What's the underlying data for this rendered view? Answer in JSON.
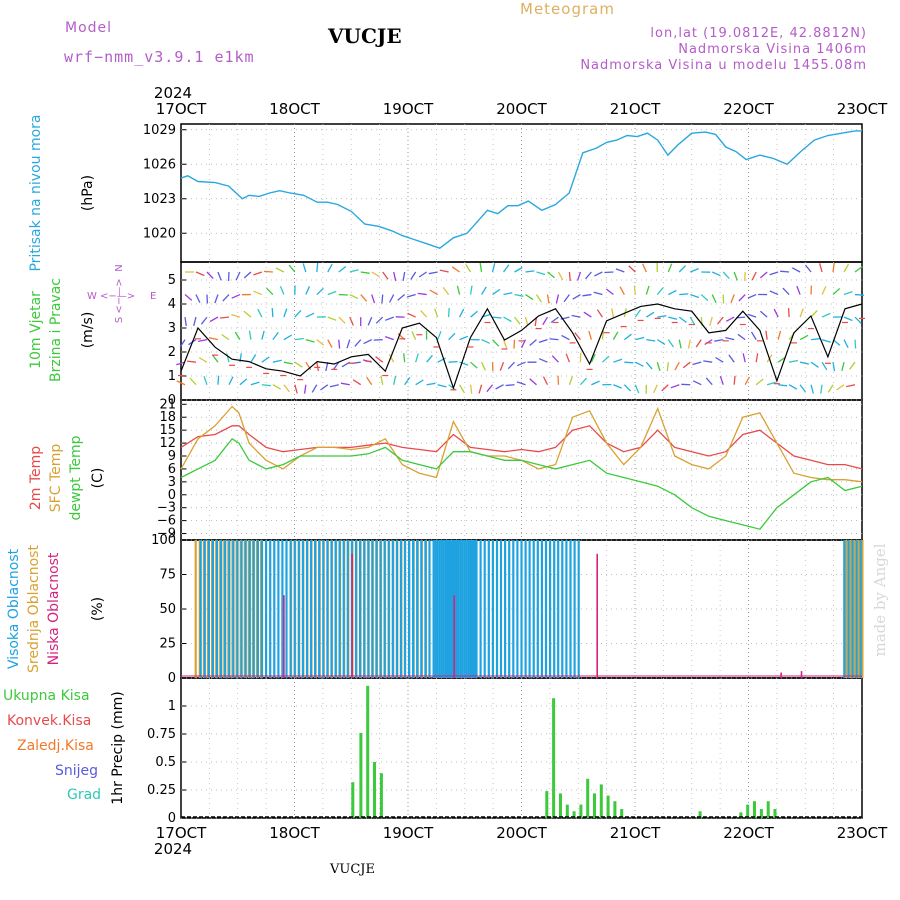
{
  "header": {
    "model_label": "Model",
    "model_name": "wrf−nmm_v3.9.1  e1km",
    "station": "VUCJE",
    "subtitle": "Meteogram",
    "coords": "lon,lat (19.0812E, 42.8812N)",
    "elevation": "Nadmorska Visina 1406m",
    "model_elevation": "Nadmorska Visina u modelu 1455.08m",
    "footer": "VUCJE",
    "watermark": "made by Angel"
  },
  "colors": {
    "pressure": "#29a8e0",
    "temp2m": "#e84a4a",
    "sfc": "#d9a132",
    "dewpoint": "#3cc93c",
    "high_cloud": "#1ea3e0",
    "mid_cloud": "#d9a132",
    "low_cloud": "#d4237e",
    "total_precip": "#3cc93c",
    "conv_precip": "#e84a4a",
    "freezing": "#f07a2a",
    "snow": "#5a5ae0",
    "hail": "#2ec9b4",
    "wind_line": "#000000",
    "gust": "#e84a4a",
    "model_label": "#b45cc9",
    "subtitle": "#e0b060",
    "wind_dir": "#b45cc9"
  },
  "chart_data": [
    {
      "type": "line",
      "panel": "pressure",
      "ylabel_main": "Pritisak na nivou mora",
      "units": "(hPa)",
      "ylim": [
        1017.5,
        1029.5
      ],
      "yticks": [
        1020,
        1023,
        1026,
        1029
      ],
      "x_days": [
        0,
        0.1,
        0.25,
        0.5,
        0.7,
        0.9,
        1.0,
        1.15,
        1.3,
        1.45,
        1.6,
        1.8,
        2.0,
        2.15,
        2.3,
        2.5,
        2.7,
        2.9,
        3.1,
        3.25,
        3.4,
        3.6,
        3.8,
        4.0,
        4.2,
        4.35,
        4.5,
        4.65,
        4.8,
        4.95,
        5.1,
        5.3,
        5.5,
        5.7,
        5.9,
        6.1,
        6.25,
        6.4,
        6.55,
        6.7,
        6.85,
        7.0,
        7.15,
        7.3,
        7.5,
        7.7,
        7.85,
        8.0,
        8.15,
        8.3,
        8.5,
        8.7,
        8.9,
        9.1,
        9.3,
        9.5,
        9.7,
        9.9,
        10.0
      ],
      "values": [
        1024.8,
        1025.0,
        1024.5,
        1024.4,
        1024.1,
        1023.0,
        1023.3,
        1023.2,
        1023.5,
        1023.7,
        1023.5,
        1023.3,
        1022.7,
        1022.7,
        1022.5,
        1021.9,
        1020.8,
        1020.6,
        1020.2,
        1019.8,
        1019.5,
        1019.1,
        1018.7,
        1019.6,
        1020.0,
        1021.0,
        1022.0,
        1021.7,
        1022.4,
        1022.4,
        1022.8,
        1022.0,
        1022.5,
        1023.5,
        1027.0,
        1027.4,
        1027.9,
        1028.1,
        1028.5,
        1028.4,
        1028.7,
        1028.1,
        1026.8,
        1027.7,
        1028.7,
        1028.8,
        1028.6,
        1027.5,
        1027.1,
        1026.4,
        1026.8,
        1026.5,
        1026.0,
        1027.1,
        1028.1,
        1028.5,
        1028.7,
        1028.9,
        1028.9
      ]
    },
    {
      "type": "line",
      "panel": "wind",
      "ylabel_main": "10m Vjetar",
      "ylabel_sub": "Brzina i Pravac",
      "units": "(m/s)",
      "dir_n": "N",
      "dir_e": "E",
      "dir_w": "W",
      "dir_s": "S",
      "dir_arrows_h": "<−—>",
      "dir_arrows_v": "<−—>",
      "ylim": [
        0,
        5.75
      ],
      "yticks": [
        0,
        1,
        2,
        3,
        4,
        5
      ],
      "x_days": [
        0,
        0.25,
        0.5,
        0.75,
        1.0,
        1.25,
        1.5,
        1.75,
        2.0,
        2.25,
        2.5,
        2.75,
        3.0,
        3.25,
        3.5,
        3.75,
        4.0,
        4.25,
        4.5,
        4.75,
        5.0,
        5.25,
        5.5,
        5.75,
        6.0,
        6.25,
        6.5,
        6.75,
        7.0,
        7.25,
        7.5,
        7.75,
        8.0,
        8.25,
        8.5,
        8.75,
        9.0,
        9.25,
        9.5,
        9.75,
        10.0
      ],
      "values": [
        1.2,
        3.0,
        2.2,
        1.7,
        1.6,
        1.3,
        1.2,
        1.0,
        1.6,
        1.5,
        1.8,
        1.9,
        1.2,
        3.0,
        3.2,
        2.6,
        0.5,
        2.6,
        3.8,
        2.5,
        2.9,
        3.5,
        3.8,
        2.8,
        1.5,
        3.3,
        3.6,
        3.9,
        4.0,
        3.8,
        3.7,
        2.8,
        2.9,
        3.7,
        2.9,
        0.8,
        2.8,
        3.5,
        1.8,
        3.8,
        4.0
      ]
    },
    {
      "type": "line",
      "panel": "temperature",
      "ylabel_1": "2m Temp",
      "ylabel_2": "SFC Temp",
      "ylabel_3": "dewpt Temp",
      "units": "(C)",
      "ylim": [
        -10.5,
        22
      ],
      "yticks": [
        -9,
        -6,
        -3,
        0,
        3,
        6,
        9,
        12,
        15,
        18,
        21
      ],
      "x_days": [
        0,
        0.25,
        0.5,
        0.75,
        0.85,
        1.0,
        1.25,
        1.5,
        1.75,
        2.0,
        2.25,
        2.5,
        2.75,
        3.0,
        3.25,
        3.5,
        3.75,
        4.0,
        4.25,
        4.5,
        4.75,
        5.0,
        5.25,
        5.5,
        5.75,
        6.0,
        6.25,
        6.5,
        6.75,
        7.0,
        7.25,
        7.5,
        7.75,
        8.0,
        8.25,
        8.5,
        8.75,
        9.0,
        9.25,
        9.5,
        9.75,
        10.0
      ],
      "series": [
        {
          "key": "t2m",
          "values": [
            11,
            13.5,
            14,
            16,
            16,
            14,
            11,
            10,
            10.5,
            11,
            11,
            11,
            11.5,
            12,
            11,
            10.5,
            10,
            14,
            11,
            10.5,
            10,
            10.5,
            10,
            11,
            15,
            16,
            12,
            10,
            11,
            15,
            11,
            10,
            9,
            10,
            14,
            15,
            12,
            9,
            8,
            7,
            7,
            6
          ]
        },
        {
          "key": "sfc",
          "values": [
            6,
            13,
            16,
            20.5,
            19,
            12,
            8,
            6,
            9,
            11,
            11,
            10.5,
            11,
            13,
            7,
            5,
            4,
            17,
            10,
            9,
            9,
            8,
            6,
            7,
            18,
            19.5,
            12,
            7,
            11,
            20,
            9,
            7,
            6,
            9,
            18,
            19,
            12,
            5,
            4,
            3.5,
            3.5,
            3
          ]
        },
        {
          "key": "dewpt",
          "values": [
            4,
            6,
            8,
            13,
            12,
            8,
            6,
            7,
            9,
            9,
            9,
            9,
            9.5,
            11,
            8,
            7,
            6,
            10,
            10,
            9,
            8,
            8,
            7,
            6,
            7,
            8,
            5,
            4,
            3,
            2,
            0,
            -3,
            -5,
            -6,
            -7,
            -8,
            -3,
            0,
            3,
            4,
            1,
            2
          ]
        }
      ]
    },
    {
      "type": "bar",
      "panel": "clouds",
      "ylabel_1": "Visoka Oblacnost",
      "ylabel_2": "Srednja Oblacnost",
      "ylabel_3": "Niska Oblacnost",
      "units": "(%)",
      "ylim": [
        0,
        100
      ],
      "yticks": [
        0,
        25,
        50,
        75,
        100
      ],
      "high": [
        [
          0.25,
          4.3,
          100
        ],
        [
          3.25,
          3.6,
          100
        ],
        [
          3.7,
          5.8,
          100
        ],
        [
          9.7,
          10.0,
          100
        ]
      ],
      "mid": [
        [
          0.2,
          1.2,
          100
        ],
        [
          1.6,
          3.25,
          100
        ],
        [
          3.4,
          3.6,
          100
        ],
        [
          9.75,
          10.0,
          100
        ]
      ],
      "low": [
        [
          1.5,
          0.6
        ],
        [
          2.5,
          0.9
        ],
        [
          4.0,
          0.6
        ],
        [
          6.1,
          0.9
        ],
        [
          8.8,
          0.04
        ],
        [
          9.1,
          0.05
        ]
      ]
    },
    {
      "type": "bar",
      "panel": "precip",
      "legend_total": "Ukupna Kisa",
      "legend_conv": "Konvek.Kisa",
      "legend_freeze": "Zaledj.Kisa",
      "legend_snow": "Snijeg",
      "legend_hail": "Grad",
      "units": "1hr Precip (mm)",
      "ylim": [
        0,
        1.25
      ],
      "yticks": [
        0,
        0.25,
        0.5,
        0.75,
        1
      ],
      "total": [
        [
          2.5,
          0.32
        ],
        [
          2.62,
          0.76
        ],
        [
          2.72,
          1.18
        ],
        [
          2.82,
          0.5
        ],
        [
          2.92,
          0.4
        ],
        [
          5.35,
          0.24
        ],
        [
          5.45,
          1.07
        ],
        [
          5.55,
          0.22
        ],
        [
          5.65,
          0.12
        ],
        [
          5.75,
          0.06
        ],
        [
          5.85,
          0.12
        ],
        [
          5.95,
          0.35
        ],
        [
          6.05,
          0.22
        ],
        [
          6.15,
          0.3
        ],
        [
          6.25,
          0.2
        ],
        [
          6.35,
          0.15
        ],
        [
          6.45,
          0.08
        ],
        [
          7.6,
          0.06
        ],
        [
          8.2,
          0.05
        ],
        [
          8.3,
          0.12
        ],
        [
          8.4,
          0.15
        ],
        [
          8.5,
          0.08
        ],
        [
          8.6,
          0.15
        ],
        [
          8.7,
          0.08
        ]
      ]
    }
  ],
  "time_axis": {
    "start_year": "2024",
    "labels": [
      "17OCT",
      "18OCT",
      "19OCT",
      "20OCT",
      "21OCT",
      "22OCT",
      "23OCT"
    ]
  }
}
